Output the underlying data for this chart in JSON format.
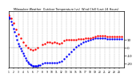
{
  "title": "Milwaukee Weather  Outdoor Temperature (vs)  Wind Chill (Last 24 Hours)",
  "background_color": "#ffffff",
  "ylim": [
    -25,
    45
  ],
  "xlim": [
    0,
    48
  ],
  "yticks": [
    10,
    0,
    -10,
    -20
  ],
  "ytick_labels": [
    "10",
    "0",
    "-10",
    "-20"
  ],
  "blue_x": [
    0,
    0.5,
    1,
    1.5,
    2,
    2.5,
    3,
    3.5,
    4,
    4.5,
    5,
    5.5,
    6,
    6.5,
    7,
    7.5,
    8,
    8.5,
    9,
    9.5,
    10,
    10.5,
    11,
    11.5,
    12,
    12.5,
    13,
    14,
    15,
    16,
    17,
    18,
    19,
    20,
    21,
    22,
    23,
    24,
    25,
    26,
    27,
    28,
    29,
    30,
    31,
    32,
    33,
    34,
    35,
    36,
    37,
    38,
    39,
    40,
    41,
    42,
    43,
    44,
    45,
    46,
    47
  ],
  "blue_y": [
    38,
    36,
    32,
    28,
    24,
    20,
    15,
    10,
    5,
    2,
    -1,
    -4,
    -7,
    -10,
    -13,
    -16,
    -18,
    -20,
    -21,
    -22,
    -23,
    -23,
    -23,
    -23,
    -23,
    -22,
    -22,
    -20,
    -19,
    -19,
    -19,
    -19,
    -19,
    -19,
    -18,
    -17,
    -14,
    -11,
    -8,
    -5,
    -2,
    1,
    3,
    5,
    7,
    8,
    9,
    10,
    11,
    12,
    12,
    12,
    12,
    12,
    11,
    11,
    11,
    11,
    11,
    11,
    11
  ],
  "red_x": [
    0,
    1,
    2,
    3,
    4,
    5,
    6,
    7,
    8,
    9,
    10,
    11,
    12,
    14,
    15,
    16,
    17,
    18,
    19,
    20,
    21,
    22,
    23,
    24,
    25,
    26,
    27,
    28,
    29,
    30,
    31,
    32,
    33,
    34,
    35,
    36,
    37,
    38,
    39,
    40,
    41,
    42,
    43,
    44,
    45,
    46,
    47
  ],
  "red_y": [
    40,
    36,
    30,
    23,
    17,
    12,
    7,
    3,
    0,
    -2,
    -3,
    -2,
    0,
    4,
    5,
    7,
    7,
    6,
    7,
    6,
    5,
    6,
    9,
    10,
    10,
    10,
    10,
    10,
    11,
    11,
    11,
    12,
    12,
    12,
    13,
    14,
    15,
    15,
    15,
    15,
    14,
    14,
    14,
    14,
    14,
    14,
    14
  ],
  "vgrid_positions": [
    0,
    2,
    4,
    6,
    8,
    10,
    12,
    14,
    16,
    18,
    20,
    22,
    24,
    26,
    28,
    30,
    32,
    34,
    36,
    38,
    40,
    42,
    44,
    46
  ],
  "xtick_positions": [
    0,
    2,
    4,
    6,
    8,
    10,
    12,
    14,
    16,
    18,
    20,
    22,
    24,
    26,
    28,
    30,
    32,
    34,
    36,
    38,
    40,
    42,
    44,
    46
  ],
  "xtick_labels": [
    "1",
    "2",
    "3",
    "4",
    "5",
    "6",
    "7",
    "8",
    "9",
    "10",
    "11",
    "12",
    "13",
    "14",
    "15",
    "16",
    "17",
    "18",
    "19",
    "20",
    "21",
    "22",
    "23",
    "24"
  ]
}
